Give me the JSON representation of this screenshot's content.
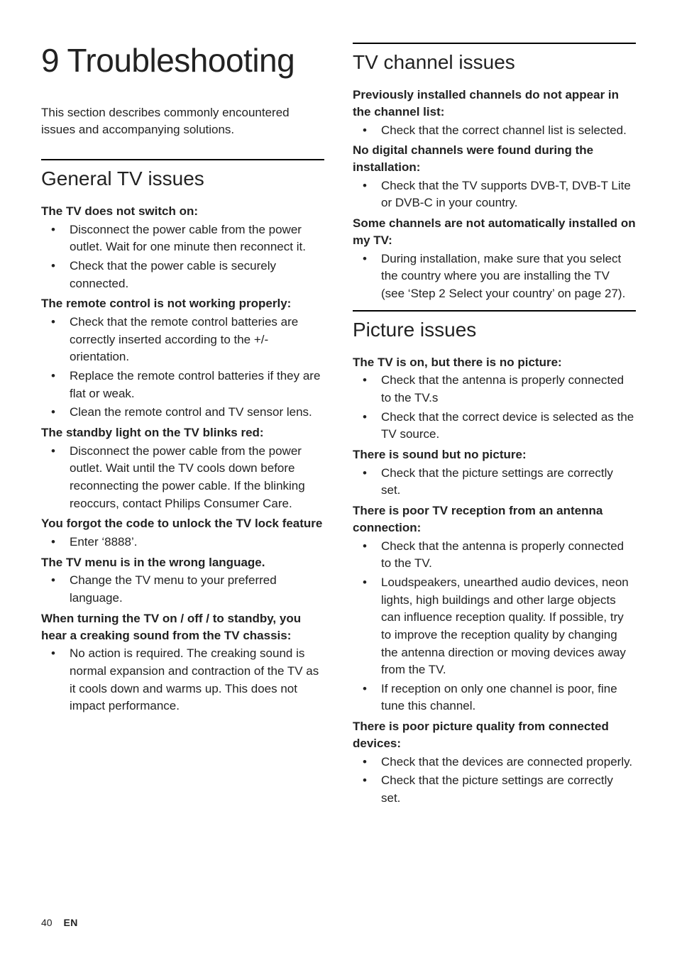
{
  "chapter": "9   Troubleshooting",
  "intro": "This section describes commonly encountered issues and accompanying solutions.",
  "footer": {
    "page": "40",
    "lang": "EN"
  },
  "leftSections": [
    {
      "heading": "General TV issues",
      "issues": [
        {
          "title": "The TV does not switch on:",
          "bullets": [
            "Disconnect the power cable from the power outlet. Wait for one minute then reconnect it.",
            "Check that the power cable is securely connected."
          ]
        },
        {
          "title": "The remote control is not working properly:",
          "bullets": [
            "Check that the remote control batteries are correctly inserted according to the +/- orientation.",
            "Replace the remote control batteries if they are flat or weak.",
            "Clean the remote control and TV sensor lens."
          ]
        },
        {
          "title": "The standby light on the TV blinks red:",
          "bullets": [
            "Disconnect the power cable from the power outlet. Wait until the TV cools down before reconnecting the power cable. If the blinking reoccurs, contact Philips Consumer Care."
          ]
        },
        {
          "title": "You forgot the code to unlock the TV lock feature",
          "bullets": [
            "Enter ‘8888’."
          ]
        },
        {
          "title": "The TV menu is in the wrong language.",
          "bullets": [
            "Change the TV menu to your preferred language."
          ]
        },
        {
          "title": "When turning the TV on / off / to standby, you hear a creaking sound from the TV chassis:",
          "bullets": [
            "No action is required. The creaking sound is normal expansion and contraction of the TV as it cools down and warms up. This does not impact performance."
          ]
        }
      ]
    }
  ],
  "rightSections": [
    {
      "heading": "TV channel issues",
      "issues": [
        {
          "title": "Previously installed channels do not appear in the channel list:",
          "bullets": [
            "Check that the correct channel list is selected."
          ]
        },
        {
          "title": "No digital channels were found during the installation:",
          "bullets": [
            "Check that the TV supports DVB-T, DVB-T Lite or DVB-C in your country."
          ]
        },
        {
          "title": "Some channels are not automatically installed on my TV:",
          "bullets": [
            "During installation, make sure that you select the country where you are installing the TV (see ‘Step 2 Select your country’ on page 27)."
          ]
        }
      ]
    },
    {
      "heading": "Picture issues",
      "issues": [
        {
          "title": "The TV is on, but there is no picture:",
          "bullets": [
            "Check that the antenna is properly connected to the TV.s",
            "Check that the correct device is selected as the TV source."
          ]
        },
        {
          "title": "There is sound but no picture:",
          "bullets": [
            "Check that the picture settings are correctly set."
          ]
        },
        {
          "title": "There is poor TV reception from an antenna connection:",
          "bullets": [
            "Check that the antenna is properly connected to the TV.",
            "Loudspeakers, unearthed audio devices, neon lights, high buildings and other large objects can influence reception quality. If possible, try to improve the reception quality by changing the antenna direction or moving devices away from the TV.",
            "If reception on only one channel is poor, fine tune this channel."
          ]
        },
        {
          "title": "There is poor picture quality from connected devices:",
          "bullets": [
            "Check that the devices are connected properly.",
            "Check that the picture settings are correctly set."
          ]
        }
      ]
    }
  ]
}
